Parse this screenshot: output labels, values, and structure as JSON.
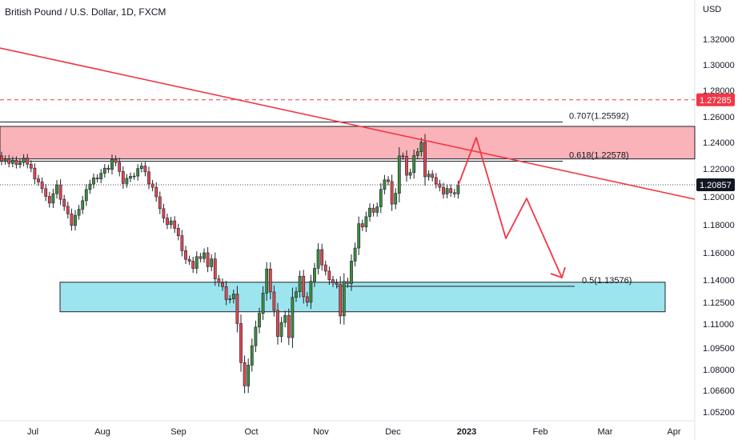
{
  "header": {
    "title": "British Pound / U.S. Dollar, 1D, FXCM"
  },
  "chart_data": {
    "type": "candlestick",
    "currency": "USD",
    "ylim": [
      1.045,
      1.338
    ],
    "yticks": [
      "1.32000",
      "1.30000",
      "1.28000",
      "1.26000",
      "1.24000",
      "1.22000",
      "1.20000",
      "1.18000",
      "1.16000",
      "1.14000",
      "1.12500",
      "1.11000",
      "1.09500",
      "1.08000",
      "1.06600",
      "1.05200"
    ],
    "xticks": [
      "Jul",
      "Aug",
      "Sep",
      "Oct",
      "Nov",
      "Dec",
      "2023",
      "Feb",
      "Mar",
      "Apr"
    ],
    "current_price": {
      "label": "1.20857",
      "value": 1.20857
    },
    "alert_price": {
      "label": "1.27285",
      "value": 1.27285
    },
    "fib_levels": [
      {
        "label": "0.707(1.25592)",
        "value": 1.25592
      },
      {
        "label": "0.618(1.22578)",
        "value": 1.22578
      },
      {
        "label": "0.5(1.13576)",
        "value": 1.13576
      }
    ],
    "resistance_zone": {
      "top": 1.2525,
      "bottom": 1.2275
    },
    "support_zone": {
      "top": 1.1385,
      "bottom": 1.1185
    },
    "closes": [
      1.2258,
      1.2275,
      1.2241,
      1.2265,
      1.2232,
      1.2248,
      1.2281,
      1.2235,
      1.2205,
      1.2128,
      1.2106,
      1.2058,
      1.2003,
      1.1955,
      1.2022,
      1.2085,
      1.1982,
      1.1932,
      1.1878,
      1.1795,
      1.1868,
      1.1911,
      1.1972,
      1.2052,
      1.2091,
      1.2135,
      1.2128,
      1.2168,
      1.2205,
      1.2196,
      1.2272,
      1.2248,
      1.2181,
      1.2095,
      1.2132,
      1.2146,
      1.2148,
      1.2202,
      1.2221,
      1.2178,
      1.2092,
      1.2068,
      1.2,
      1.1915,
      1.1848,
      1.1801,
      1.1828,
      1.1775,
      1.1722,
      1.1615,
      1.1552,
      1.1538,
      1.1485,
      1.1572,
      1.1558,
      1.16,
      1.1498,
      1.1555,
      1.1408,
      1.1383,
      1.1356,
      1.1269,
      1.1273,
      1.1306,
      1.1103,
      1.0849,
      1.069,
      1.0831,
      1.0964,
      1.1081,
      1.1174,
      1.1312,
      1.1481,
      1.132,
      1.1195,
      1.1022,
      1.1111,
      1.116,
      1.1015,
      1.1284,
      1.1322,
      1.1428,
      1.1288,
      1.1251,
      1.1392,
      1.1486,
      1.1623,
      1.1511,
      1.1465,
      1.1402,
      1.1381,
      1.137,
      1.1156,
      1.139,
      1.1376,
      1.1539,
      1.1634,
      1.1808,
      1.1784,
      1.1858,
      1.1919,
      1.1889,
      1.1928,
      1.2053,
      1.2121,
      1.2109,
      1.1948,
      1.2025,
      1.2298,
      1.2294,
      1.2154,
      1.2173,
      1.2301,
      1.2329,
      1.2401,
      1.2143,
      1.2162,
      1.2138,
      1.2092,
      1.2068,
      1.202,
      1.2059,
      1.203,
      1.2021,
      1.2081
    ]
  }
}
